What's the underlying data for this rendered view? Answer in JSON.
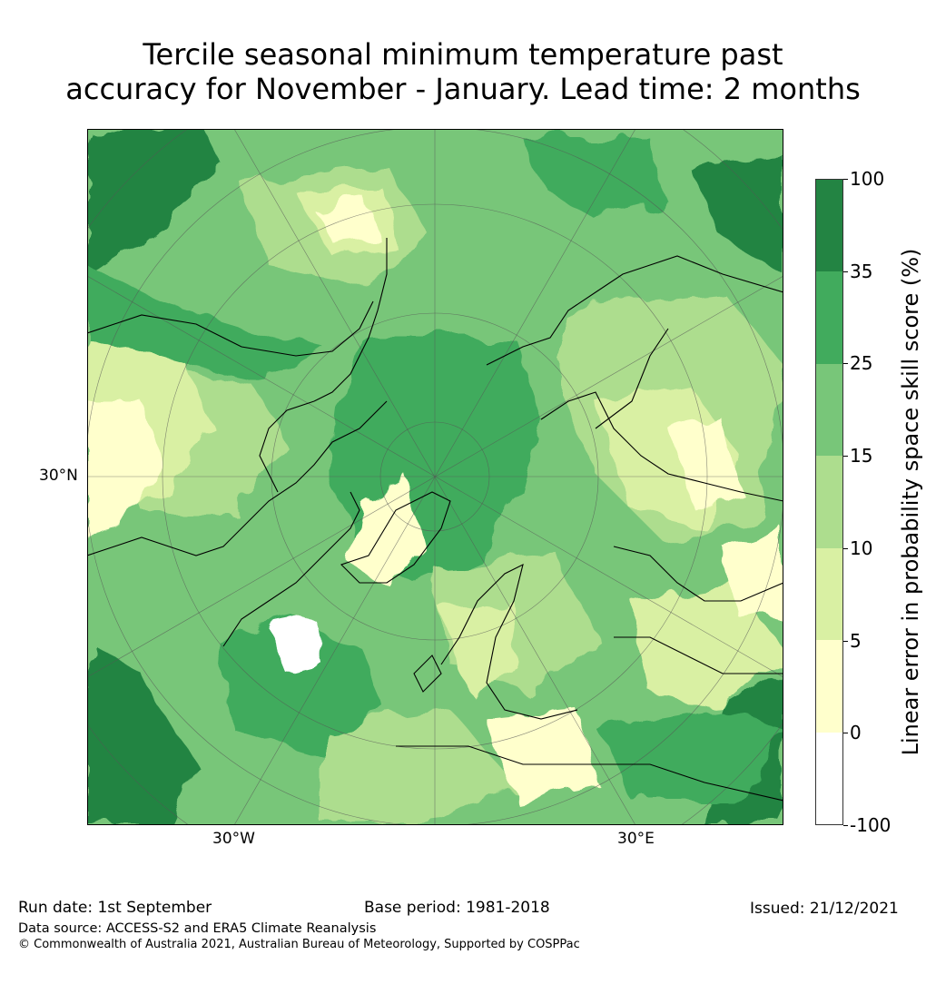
{
  "title": {
    "line1": "Tercile seasonal minimum temperature past",
    "line2": "accuracy for November - January. Lead time: 2 months"
  },
  "map": {
    "projection": "north-polar-stereographic",
    "axis_labels": {
      "left": "30°N",
      "bottom_left": "30°W",
      "bottom_right": "30°E"
    }
  },
  "colorbar": {
    "title": "Linear error in probability space skill score (%)",
    "ticks": [
      "100",
      "35",
      "25",
      "15",
      "10",
      "5",
      "0",
      "-100"
    ],
    "bins": [
      {
        "range": "35-100",
        "color": "#238443"
      },
      {
        "range": "25-35",
        "color": "#41ab5d"
      },
      {
        "range": "15-25",
        "color": "#78c679"
      },
      {
        "range": "10-15",
        "color": "#addd8e"
      },
      {
        "range": "5-10",
        "color": "#d9f0a3"
      },
      {
        "range": "0-5",
        "color": "#ffffcc"
      },
      {
        "range": "-100-0",
        "color": "#ffffff"
      }
    ]
  },
  "footer": {
    "run_date": "Run date: 1st September",
    "base_period": "Base period: 1981-2018",
    "issued": "Issued: 21/12/2021",
    "data_source": "Data source: ACCESS-S2 and ERA5 Climate Reanalysis",
    "copyright": "© Commonwealth of Australia 2021, Australian Bureau of Meteorology, Supported by COSPPac"
  }
}
